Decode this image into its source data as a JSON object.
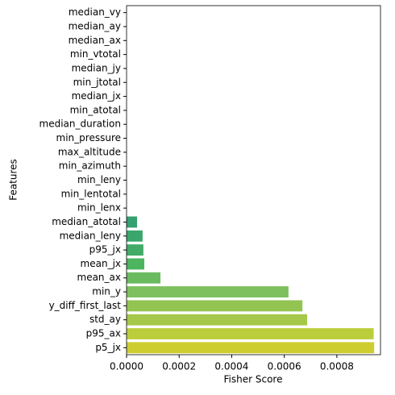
{
  "chart_data": {
    "type": "barh",
    "xlabel": "Fisher Score",
    "ylabel": "Features",
    "categories": [
      "median_vy",
      "median_ay",
      "median_ax",
      "min_vtotal",
      "median_jy",
      "min_jtotal",
      "median_jx",
      "min_atotal",
      "median_duration",
      "min_pressure",
      "max_altitude",
      "min_azimuth",
      "min_leny",
      "min_lentotal",
      "min_lenx",
      "median_atotal",
      "median_leny",
      "p95_jx",
      "mean_jx",
      "mean_ax",
      "min_y",
      "y_diff_first_last",
      "std_ay",
      "p95_ax",
      "p5_jx"
    ],
    "values": [
      0,
      0,
      0,
      0,
      0,
      0,
      0,
      0,
      0,
      0,
      0,
      0,
      0,
      0,
      0,
      4e-05,
      6.1e-05,
      6.4e-05,
      6.75e-05,
      0.000129,
      0.000616,
      0.000669,
      0.000687,
      0.00094,
      0.000942
    ],
    "colors": [
      "#46327e",
      "#433e85",
      "#3e4989",
      "#39558c",
      "#355f8d",
      "#31688e",
      "#2d718e",
      "#2a788e",
      "#26828e",
      "#238a8d",
      "#1f948c",
      "#1f9e89",
      "#22a884",
      "#2db27d",
      "#35a070",
      "#35a070",
      "#3aa66b",
      "#42ab67",
      "#4db45f",
      "#6abb60",
      "#7dc05d",
      "#93c452",
      "#a6c84a",
      "#bccd3c",
      "#cdcd30"
    ],
    "xlim": [
      0,
      0.000966
    ],
    "xticks": [
      {
        "value": 0,
        "label": "0.0000"
      },
      {
        "value": 0.0002,
        "label": "0.0002"
      },
      {
        "value": 0.0004,
        "label": "0.0004"
      },
      {
        "value": 0.0006,
        "label": "0.0006"
      },
      {
        "value": 0.0008,
        "label": "0.0008"
      }
    ]
  }
}
